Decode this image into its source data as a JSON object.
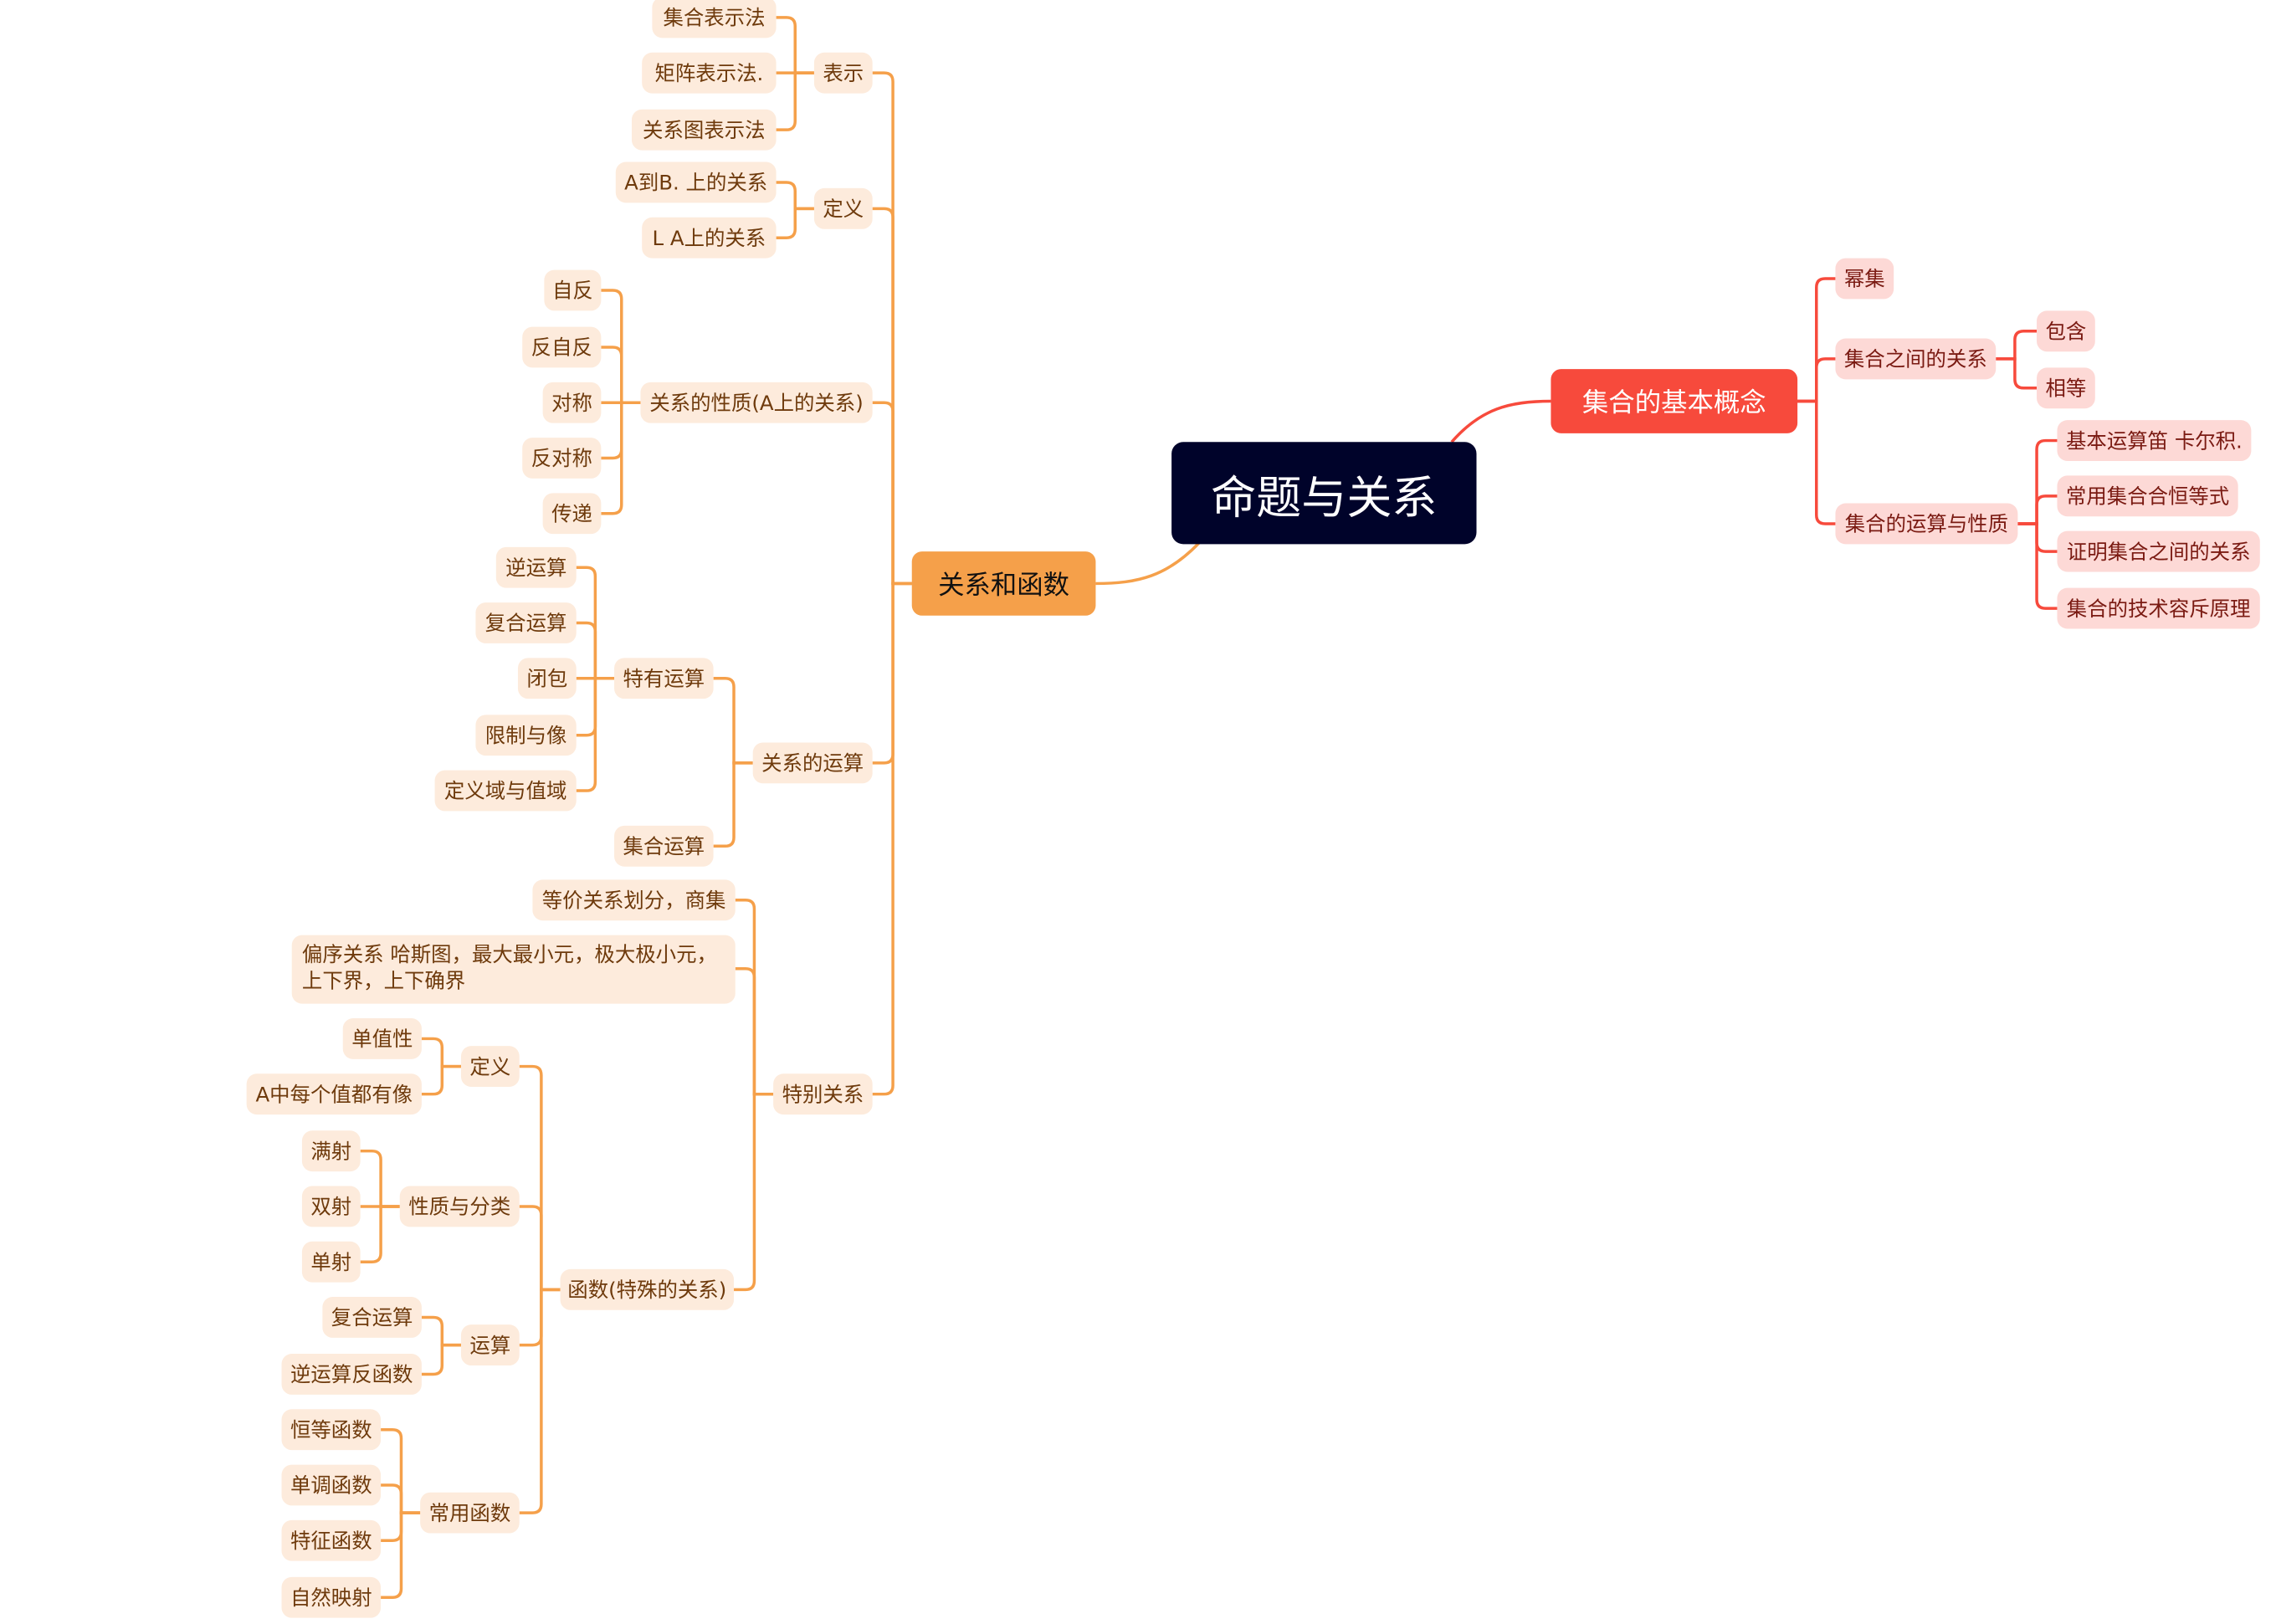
{
  "colors": {
    "root": "#00032a",
    "orange_branch": "#f5a04a",
    "orange_node": "#fdebdc",
    "red_branch": "#f74a3c",
    "red_node": "#fdd9d6"
  },
  "root": {
    "label": "命题与关系",
    "left": {
      "label": "关系和函数",
      "children": [
        {
          "label": "表示",
          "children": [
            {
              "label": "集合表示法"
            },
            {
              "label": "矩阵表示法."
            },
            {
              "label": "关系图表示法"
            }
          ]
        },
        {
          "label": "定义",
          "children": [
            {
              "label": "A到B. 上的关系"
            },
            {
              "label": "L A上的关系"
            }
          ]
        },
        {
          "label": "关系的性质(A上的关系)",
          "children": [
            {
              "label": "自反"
            },
            {
              "label": "反自反"
            },
            {
              "label": "对称"
            },
            {
              "label": "反对称"
            },
            {
              "label": "传递"
            }
          ]
        },
        {
          "label": "关系的运算",
          "children": [
            {
              "label": "特有运算",
              "children": [
                {
                  "label": "逆运算"
                },
                {
                  "label": "复合运算"
                },
                {
                  "label": "闭包"
                },
                {
                  "label": "限制与像"
                },
                {
                  "label": "定义域与值域"
                }
              ]
            },
            {
              "label": "集合运算"
            }
          ]
        },
        {
          "label": "特别关系",
          "children": [
            {
              "label": "等价关系划分，商集"
            },
            {
              "label": "偏序关系 哈斯图，最大最小元，极大极小元，上下界，上下确界"
            },
            {
              "label": "函数(特殊的关系)",
              "children": [
                {
                  "label": "定义",
                  "children": [
                    {
                      "label": "单值性"
                    },
                    {
                      "label": "A中每个值都有像"
                    }
                  ]
                },
                {
                  "label": "性质与分类",
                  "children": [
                    {
                      "label": "满射"
                    },
                    {
                      "label": "双射"
                    },
                    {
                      "label": "单射"
                    }
                  ]
                },
                {
                  "label": "运算",
                  "children": [
                    {
                      "label": "复合运算"
                    },
                    {
                      "label": "逆运算反函数"
                    }
                  ]
                },
                {
                  "label": "常用函数",
                  "children": [
                    {
                      "label": "恒等函数"
                    },
                    {
                      "label": "单调函数"
                    },
                    {
                      "label": "特征函数"
                    },
                    {
                      "label": "自然映射"
                    }
                  ]
                }
              ]
            }
          ]
        }
      ]
    },
    "right": {
      "label": "集合的基本概念",
      "children": [
        {
          "label": "幂集"
        },
        {
          "label": "集合之间的关系",
          "children": [
            {
              "label": "包含"
            },
            {
              "label": "相等"
            }
          ]
        },
        {
          "label": "集合的运算与性质",
          "children": [
            {
              "label": "基本运算笛 卡尔积."
            },
            {
              "label": "常用集合合恒等式"
            },
            {
              "label": "证明集合之间的关系"
            },
            {
              "label": "集合的技术容斥原理"
            }
          ]
        }
      ]
    }
  }
}
